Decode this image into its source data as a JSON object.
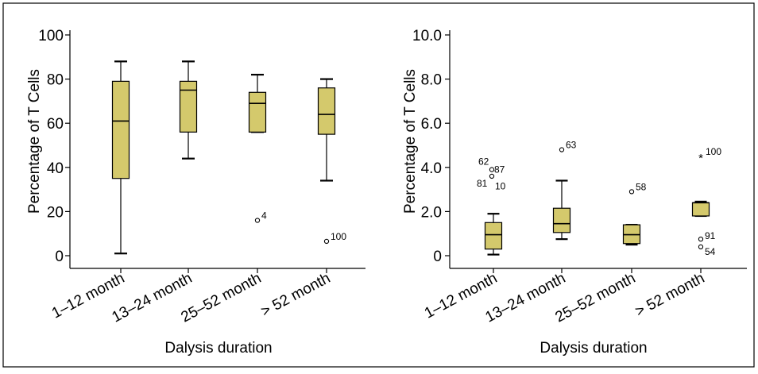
{
  "colors": {
    "box_fill": "#d4c96c",
    "line": "#000000"
  },
  "chart_data": [
    {
      "type": "box",
      "ylabel": "Percentage of T Cells",
      "xlabel": "Dalysis duration",
      "ylim": [
        0,
        100
      ],
      "yticks": [
        0,
        20,
        40,
        60,
        80,
        100
      ],
      "ytick_labels": [
        "0",
        "20",
        "40",
        "60",
        "80",
        "100"
      ],
      "categories": [
        "1–12 month",
        "13–24 month",
        "25–52 month",
        "> 52 month"
      ],
      "boxes": [
        {
          "min": 1,
          "q1": 35,
          "median": 61,
          "q3": 79,
          "max": 88,
          "outliers": []
        },
        {
          "min": 44,
          "q1": 56,
          "median": 75,
          "q3": 79,
          "max": 88,
          "outliers": []
        },
        {
          "min": 56,
          "q1": 56,
          "median": 69,
          "q3": 74,
          "max": 82,
          "outliers": [
            {
              "value": 16,
              "label": "4",
              "marker": "circle"
            }
          ]
        },
        {
          "min": 34,
          "q1": 55,
          "median": 64,
          "q3": 76,
          "max": 80,
          "outliers": [
            {
              "value": 6.5,
              "label": "100",
              "marker": "circle"
            }
          ]
        }
      ]
    },
    {
      "type": "box",
      "ylabel": "Percentage of T Cells",
      "xlabel": "Dalysis duration",
      "ylim": [
        0,
        10
      ],
      "yticks": [
        0,
        2,
        4,
        6,
        8,
        10
      ],
      "ytick_labels": [
        "0",
        "2.0",
        "4.0",
        "6.0",
        "8.0",
        "10.0"
      ],
      "categories": [
        "1–12 month",
        "13–24 month",
        "25–52 month",
        "> 52 month"
      ],
      "boxes": [
        {
          "min": 0.05,
          "q1": 0.3,
          "median": 0.95,
          "q3": 1.5,
          "max": 1.9,
          "outliers": [
            {
              "value": 3.9,
              "label": "62",
              "marker": "circle"
            },
            {
              "value": 3.65,
              "label": "87",
              "marker": "circle"
            },
            {
              "value": 3.6,
              "label": "81",
              "marker": "circle"
            },
            {
              "value": 3.55,
              "label": "10",
              "marker": "circle"
            }
          ]
        },
        {
          "min": 0.75,
          "q1": 1.05,
          "median": 1.45,
          "q3": 2.15,
          "max": 3.4,
          "outliers": [
            {
              "value": 4.8,
              "label": "63",
              "marker": "circle"
            }
          ]
        },
        {
          "min": 0.5,
          "q1": 0.55,
          "median": 0.95,
          "q3": 1.4,
          "max": 1.4,
          "outliers": [
            {
              "value": 2.9,
              "label": "58",
              "marker": "circle"
            }
          ]
        },
        {
          "min": 1.8,
          "q1": 1.8,
          "median": 2.4,
          "q3": 2.4,
          "max": 2.45,
          "outliers": [
            {
              "value": 4.5,
              "label": "100",
              "marker": "star"
            },
            {
              "value": 0.75,
              "label": "91",
              "marker": "circle"
            },
            {
              "value": 0.4,
              "label": "54",
              "marker": "circle"
            }
          ]
        }
      ]
    }
  ]
}
